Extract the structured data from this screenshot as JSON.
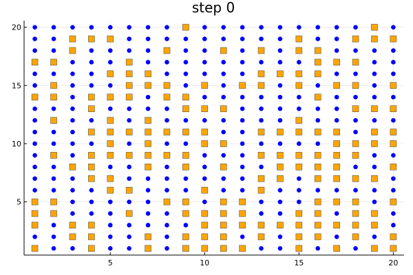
{
  "chart_data": {
    "type": "scatter",
    "title": "step 0",
    "xlabel": "",
    "ylabel": "",
    "xlim": [
      0.43,
      20.57
    ],
    "ylim": [
      0.43,
      20.57
    ],
    "xticks": [
      5,
      10,
      15,
      20
    ],
    "yticks": [
      5,
      10,
      15,
      20
    ],
    "grid": true,
    "legend": "none",
    "grid_size": 20,
    "colors": {
      "circle": "#0000ff",
      "square": "#ffa500"
    },
    "rows": [
      "........S.........S.",
      "..SSS.........S..SSS",
      "..S....S..S.S.SS....",
      "SS...S.........SSS..",
      "....SSS.....SSSS....",
      ".S...SSS.S.SS.S.SS.S",
      "SS.SSS.SS......S....",
      "...S....SSS......SSS",
      ".S..S.S.......S.....",
      "...SSSSSSS..SSSSS.SS",
      "....S.S..SS.....SSSS",
      ".S.SSSSSS...SSSSSS..",
      "..SS..S.S.S..SSSS..S",
      "...SS.......SS.SSSS.",
      "....SS...S..S.......",
      "SS.....SS.SS...SSS.S",
      "SS...S..SSSS..SS.SS.",
      "S.SS.....SSSSSSSSSS.",
      "..SS..S.SSS.S.SS.S.S",
      "S..S..S.SSSS..S.S.SS"
    ]
  }
}
